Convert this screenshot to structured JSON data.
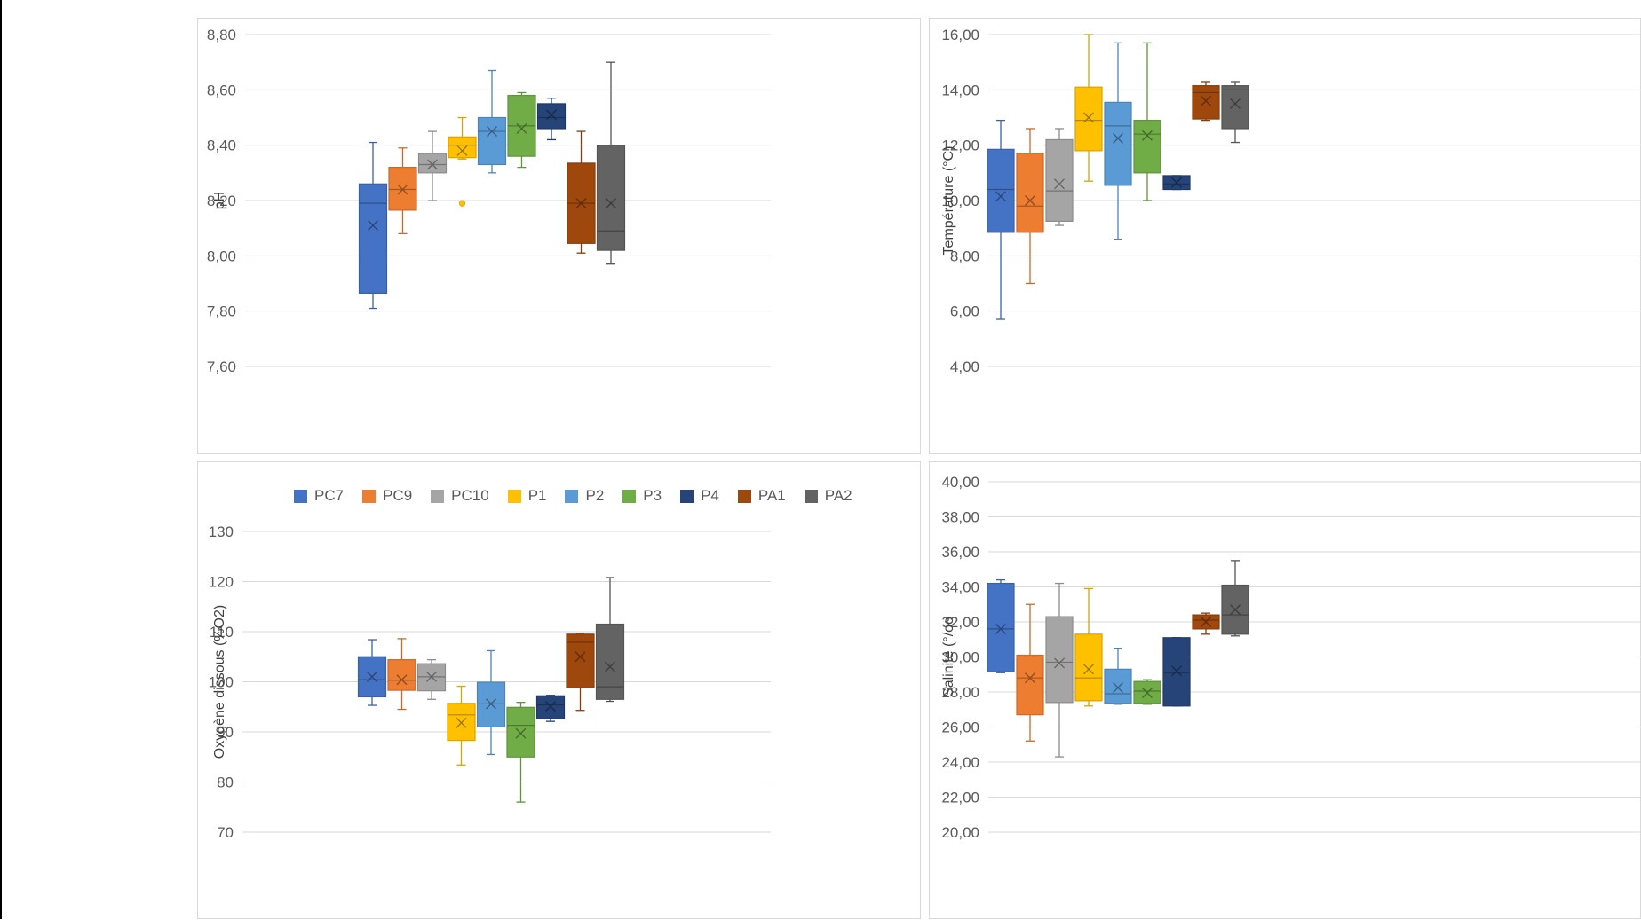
{
  "colors": {
    "PC7": "#4472c4",
    "PC9": "#ed7d31",
    "PC10": "#a5a5a5",
    "P1": "#ffc000",
    "P2": "#5b9bd5",
    "P3": "#70ad47",
    "P4": "#264478",
    "PA1": "#9e480e",
    "PA2": "#636363"
  },
  "legend": [
    "PC7",
    "PC9",
    "PC10",
    "P1",
    "P2",
    "P3",
    "P4",
    "PA1",
    "PA2"
  ],
  "chart_data": [
    {
      "type": "box",
      "ylabel": "pH",
      "ylim": [
        7.6,
        8.8
      ],
      "yticks": [
        7.6,
        7.8,
        8.0,
        8.2,
        8.4,
        8.6,
        8.8
      ],
      "ytick_labels": [
        "7,60",
        "7,80",
        "8,00",
        "8,20",
        "8,40",
        "8,60",
        "8,80"
      ],
      "grid": true,
      "series": [
        {
          "name": "PC7",
          "min": 7.81,
          "q1": 7.865,
          "median": 8.19,
          "q3": 8.26,
          "max": 8.41,
          "mean": 8.11
        },
        {
          "name": "PC9",
          "min": 8.08,
          "q1": 8.165,
          "median": 8.24,
          "q3": 8.32,
          "max": 8.39,
          "mean": 8.24
        },
        {
          "name": "PC10",
          "min": 8.2,
          "q1": 8.3,
          "median": 8.33,
          "q3": 8.37,
          "max": 8.45,
          "mean": 8.33
        },
        {
          "name": "P1",
          "min": 8.35,
          "q1": 8.355,
          "median": 8.4,
          "q3": 8.43,
          "max": 8.5,
          "mean": 8.38,
          "outliers": [
            8.19
          ]
        },
        {
          "name": "P2",
          "min": 8.3,
          "q1": 8.33,
          "median": 8.45,
          "q3": 8.5,
          "max": 8.67,
          "mean": 8.45
        },
        {
          "name": "P3",
          "min": 8.32,
          "q1": 8.36,
          "median": 8.47,
          "q3": 8.58,
          "max": 8.59,
          "mean": 8.46
        },
        {
          "name": "P4",
          "min": 8.42,
          "q1": 8.46,
          "median": 8.5,
          "q3": 8.55,
          "max": 8.57,
          "mean": 8.51
        },
        {
          "name": "PA1",
          "min": 8.01,
          "q1": 8.045,
          "median": 8.19,
          "q3": 8.335,
          "max": 8.45,
          "mean": 8.19
        },
        {
          "name": "PA2",
          "min": 7.97,
          "q1": 8.02,
          "median": 8.09,
          "q3": 8.4,
          "max": 8.7,
          "mean": 8.19
        }
      ]
    },
    {
      "type": "box",
      "ylabel": "Température (°C)",
      "ylim": [
        4,
        16
      ],
      "yticks": [
        4,
        6,
        8,
        10,
        12,
        14,
        16
      ],
      "ytick_labels": [
        "4,00",
        "6,00",
        "8,00",
        "10,00",
        "12,00",
        "14,00",
        "16,00"
      ],
      "grid": true,
      "series": [
        {
          "name": "PC7",
          "min": 5.7,
          "q1": 8.85,
          "median": 10.4,
          "q3": 11.85,
          "max": 12.9,
          "mean": 10.15
        },
        {
          "name": "PC9",
          "min": 7.0,
          "q1": 8.85,
          "median": 9.8,
          "q3": 11.7,
          "max": 12.6,
          "mean": 10.0
        },
        {
          "name": "PC10",
          "min": 9.1,
          "q1": 9.25,
          "median": 10.35,
          "q3": 12.2,
          "max": 12.6,
          "mean": 10.6
        },
        {
          "name": "P1",
          "min": 10.7,
          "q1": 11.8,
          "median": 12.9,
          "q3": 14.1,
          "max": 16.0,
          "mean": 13.0
        },
        {
          "name": "P2",
          "min": 8.6,
          "q1": 10.55,
          "median": 12.7,
          "q3": 13.55,
          "max": 15.7,
          "mean": 12.25
        },
        {
          "name": "P3",
          "min": 10.0,
          "q1": 11.0,
          "median": 12.4,
          "q3": 12.9,
          "max": 15.7,
          "mean": 12.35
        },
        {
          "name": "P4",
          "min": 10.4,
          "q1": 10.4,
          "median": 10.6,
          "q3": 10.9,
          "max": 10.9,
          "mean": 10.65
        },
        {
          "name": "PA1",
          "min": 12.9,
          "q1": 12.95,
          "median": 13.9,
          "q3": 14.15,
          "max": 14.3,
          "mean": 13.6
        },
        {
          "name": "PA2",
          "min": 12.1,
          "q1": 12.6,
          "median": 14.0,
          "q3": 14.15,
          "max": 14.3,
          "mean": 13.5
        }
      ]
    },
    {
      "type": "box",
      "ylabel": "Oxygène dissous (%O2)",
      "ylim": [
        70,
        130
      ],
      "yticks": [
        70,
        80,
        90,
        100,
        110,
        120,
        130
      ],
      "ytick_labels": [
        "70",
        "80",
        "90",
        "100",
        "110",
        "120",
        "130"
      ],
      "grid": true,
      "legend": "top",
      "series": [
        {
          "name": "PC7",
          "min": 95.3,
          "q1": 97.0,
          "median": 100.4,
          "q3": 105.0,
          "max": 108.4,
          "mean": 101.0
        },
        {
          "name": "PC9",
          "min": 94.5,
          "q1": 98.3,
          "median": 100.3,
          "q3": 104.4,
          "max": 108.6,
          "mean": 100.4
        },
        {
          "name": "PC10",
          "min": 96.5,
          "q1": 98.2,
          "median": 101.0,
          "q3": 103.6,
          "max": 104.4,
          "mean": 101.0
        },
        {
          "name": "P1",
          "min": 83.4,
          "q1": 88.3,
          "median": 93.4,
          "q3": 95.7,
          "max": 99.1,
          "mean": 91.8
        },
        {
          "name": "P2",
          "min": 85.5,
          "q1": 91.0,
          "median": 95.6,
          "q3": 99.9,
          "max": 106.2,
          "mean": 95.6
        },
        {
          "name": "P3",
          "min": 76.0,
          "q1": 85.0,
          "median": 91.3,
          "q3": 94.9,
          "max": 95.9,
          "mean": 89.7
        },
        {
          "name": "P4",
          "min": 92.1,
          "q1": 92.6,
          "median": 95.4,
          "q3": 97.2,
          "max": 97.3,
          "mean": 95.1
        },
        {
          "name": "PA1",
          "min": 94.3,
          "q1": 98.8,
          "median": 107.9,
          "q3": 109.5,
          "max": 109.7,
          "mean": 105.0
        },
        {
          "name": "PA2",
          "min": 96.1,
          "q1": 96.5,
          "median": 99.0,
          "q3": 111.5,
          "max": 120.8,
          "mean": 103.0
        }
      ]
    },
    {
      "type": "box",
      "ylabel": "Salinité  (°/oo",
      "ylim": [
        20,
        40
      ],
      "yticks": [
        20,
        22,
        24,
        26,
        28,
        30,
        32,
        34,
        36,
        38,
        40
      ],
      "ytick_labels": [
        "20,00",
        "22,00",
        "24,00",
        "26,00",
        "28,00",
        "30,00",
        "32,00",
        "34,00",
        "36,00",
        "38,00",
        "40,00"
      ],
      "grid": true,
      "series": [
        {
          "name": "PC7",
          "min": 29.1,
          "q1": 29.15,
          "median": 31.6,
          "q3": 34.2,
          "max": 34.4,
          "mean": 31.6
        },
        {
          "name": "PC9",
          "min": 25.2,
          "q1": 26.7,
          "median": 28.8,
          "q3": 30.1,
          "max": 33.0,
          "mean": 28.8
        },
        {
          "name": "PC10",
          "min": 24.3,
          "q1": 27.4,
          "median": 29.7,
          "q3": 32.3,
          "max": 34.2,
          "mean": 29.65
        },
        {
          "name": "P1",
          "min": 27.2,
          "q1": 27.5,
          "median": 28.8,
          "q3": 31.3,
          "max": 33.9,
          "mean": 29.3
        },
        {
          "name": "P2",
          "min": 27.3,
          "q1": 27.35,
          "median": 27.9,
          "q3": 29.3,
          "max": 30.5,
          "mean": 28.25
        },
        {
          "name": "P3",
          "min": 27.3,
          "q1": 27.35,
          "median": 28.05,
          "q3": 28.6,
          "max": 28.7,
          "mean": 27.95
        },
        {
          "name": "P4",
          "min": 27.2,
          "q1": 27.2,
          "median": 29.1,
          "q3": 31.1,
          "max": 31.1,
          "mean": 29.2
        },
        {
          "name": "PA1",
          "min": 31.3,
          "q1": 31.6,
          "median": 32.1,
          "q3": 32.4,
          "max": 32.5,
          "mean": 32.0
        },
        {
          "name": "PA2",
          "min": 31.2,
          "q1": 31.3,
          "median": 32.4,
          "q3": 34.1,
          "max": 35.5,
          "mean": 32.7
        }
      ]
    }
  ]
}
